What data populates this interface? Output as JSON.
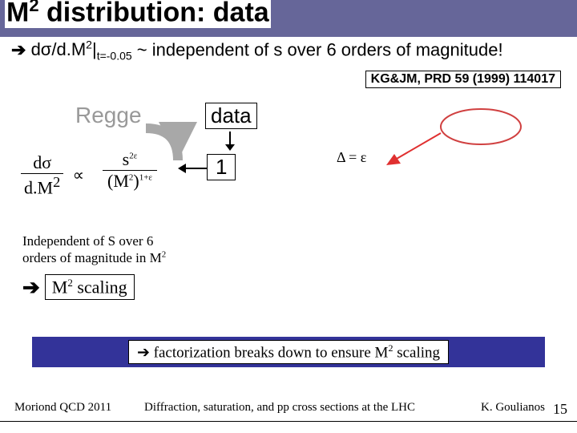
{
  "title_html": "M<sup>2</sup> distribution: data",
  "subtitle": {
    "arrow": "➔",
    "formula_html": "dσ/d.M<sup>2</sup>|<sub>t=-0.05</sub>",
    "rest": " ~ independent of s over 6 orders of magnitude!"
  },
  "ref": "KG&JM, PRD 59 (1999) 114017",
  "regge": "Regge",
  "data_label": "data",
  "one": "1",
  "fraction_left": {
    "num": "dσ",
    "den": "d.M<sup>2</sup>",
    "propto": "∝"
  },
  "fraction_right": {
    "num": "s<sup>2ε</sup>",
    "den": "(M<sup>2</sup>)<sup>1+ε</sup>"
  },
  "delta_eq": "Δ = ε",
  "indep_html": "Independent of S over 6<br>orders of magnitude in M<sup>2</sup>",
  "m2_scaling": {
    "arrow": "➔",
    "text_html": "M<sup>2</sup> scaling"
  },
  "bottom_bar_html": "➔ factorization breaks down to ensure M<sup>2</sup> scaling",
  "footer": {
    "left": "Moriond QCD 2011",
    "center": "Diffraction, saturation, and pp cross sections at the LHC",
    "right": "K. Goulianos",
    "page": "15"
  },
  "colors": {
    "title_bg": "#666699",
    "bottom_bg": "#333399",
    "regge_gray": "#999999",
    "arrow_red": "#e03030",
    "ellipse_red": "#d04040"
  }
}
